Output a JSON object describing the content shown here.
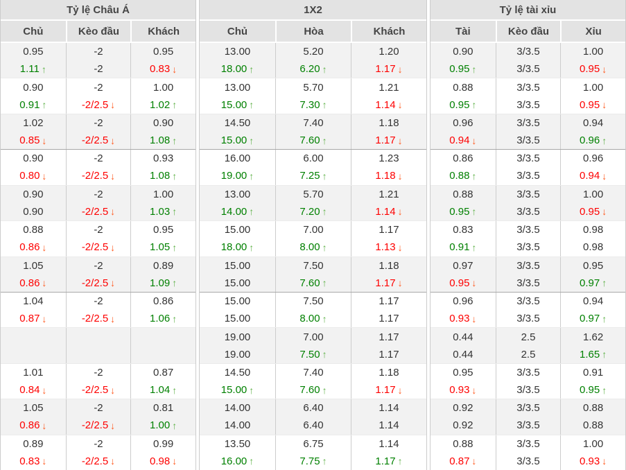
{
  "icons": {
    "up_arrow": "↑",
    "down_arrow": "↓"
  },
  "colors": {
    "header_bg": "#e3e3e3",
    "row_shade_bg": "#f2f2f2",
    "text": "#333333",
    "green_text": "#008000",
    "red_text": "#fe0000",
    "up_arrow": "#61b24b",
    "down_arrow": "#ff5a1f"
  },
  "table": {
    "groups": [
      {
        "title": "Tỷ lệ Châu Á",
        "columns": [
          "Chủ",
          "Kèo đầu",
          "Khách"
        ]
      },
      {
        "title": "1X2",
        "columns": [
          "Chủ",
          "Hòa",
          "Khách"
        ]
      },
      {
        "title": "Tỷ lệ tài xỉu",
        "columns": [
          "Tài",
          "Kèo đầu",
          "Xỉu"
        ]
      }
    ],
    "separator_after_rows": [
      3,
      7
    ],
    "rows": [
      {
        "cells": [
          {
            "v1": "0.95",
            "v2": "1.11",
            "trend": "up"
          },
          {
            "v1": "-2",
            "v2": "-2",
            "trend": ""
          },
          {
            "v1": "0.95",
            "v2": "0.83",
            "trend": "down"
          },
          {
            "v1": "13.00",
            "v2": "18.00",
            "trend": "up"
          },
          {
            "v1": "5.20",
            "v2": "6.20",
            "trend": "up"
          },
          {
            "v1": "1.20",
            "v2": "1.17",
            "trend": "down"
          },
          {
            "v1": "0.90",
            "v2": "0.95",
            "trend": "up"
          },
          {
            "v1": "3/3.5",
            "v2": "3/3.5",
            "trend": ""
          },
          {
            "v1": "1.00",
            "v2": "0.95",
            "trend": "down"
          }
        ]
      },
      {
        "cells": [
          {
            "v1": "0.90",
            "v2": "0.91",
            "trend": "up"
          },
          {
            "v1": "-2",
            "v2": "-2/2.5",
            "trend": "down"
          },
          {
            "v1": "1.00",
            "v2": "1.02",
            "trend": "up"
          },
          {
            "v1": "13.00",
            "v2": "15.00",
            "trend": "up"
          },
          {
            "v1": "5.70",
            "v2": "7.30",
            "trend": "up"
          },
          {
            "v1": "1.21",
            "v2": "1.14",
            "trend": "down"
          },
          {
            "v1": "0.88",
            "v2": "0.95",
            "trend": "up"
          },
          {
            "v1": "3/3.5",
            "v2": "3/3.5",
            "trend": ""
          },
          {
            "v1": "1.00",
            "v2": "0.95",
            "trend": "down"
          }
        ]
      },
      {
        "cells": [
          {
            "v1": "1.02",
            "v2": "0.85",
            "trend": "down"
          },
          {
            "v1": "-2",
            "v2": "-2/2.5",
            "trend": "down"
          },
          {
            "v1": "0.90",
            "v2": "1.08",
            "trend": "up"
          },
          {
            "v1": "14.50",
            "v2": "15.00",
            "trend": "up"
          },
          {
            "v1": "7.40",
            "v2": "7.60",
            "trend": "up"
          },
          {
            "v1": "1.18",
            "v2": "1.17",
            "trend": "down"
          },
          {
            "v1": "0.96",
            "v2": "0.94",
            "trend": "down"
          },
          {
            "v1": "3/3.5",
            "v2": "3/3.5",
            "trend": ""
          },
          {
            "v1": "0.94",
            "v2": "0.96",
            "trend": "up"
          }
        ]
      },
      {
        "cells": [
          {
            "v1": "0.90",
            "v2": "0.80",
            "trend": "down"
          },
          {
            "v1": "-2",
            "v2": "-2/2.5",
            "trend": "down"
          },
          {
            "v1": "0.93",
            "v2": "1.08",
            "trend": "up"
          },
          {
            "v1": "16.00",
            "v2": "19.00",
            "trend": "up"
          },
          {
            "v1": "6.00",
            "v2": "7.25",
            "trend": "up"
          },
          {
            "v1": "1.23",
            "v2": "1.18",
            "trend": "down"
          },
          {
            "v1": "0.86",
            "v2": "0.88",
            "trend": "up"
          },
          {
            "v1": "3/3.5",
            "v2": "3/3.5",
            "trend": ""
          },
          {
            "v1": "0.96",
            "v2": "0.94",
            "trend": "down"
          }
        ]
      },
      {
        "cells": [
          {
            "v1": "0.90",
            "v2": "0.90",
            "trend": ""
          },
          {
            "v1": "-2",
            "v2": "-2/2.5",
            "trend": "down"
          },
          {
            "v1": "1.00",
            "v2": "1.03",
            "trend": "up"
          },
          {
            "v1": "13.00",
            "v2": "14.00",
            "trend": "up"
          },
          {
            "v1": "5.70",
            "v2": "7.20",
            "trend": "up"
          },
          {
            "v1": "1.21",
            "v2": "1.14",
            "trend": "down"
          },
          {
            "v1": "0.88",
            "v2": "0.95",
            "trend": "up"
          },
          {
            "v1": "3/3.5",
            "v2": "3/3.5",
            "trend": ""
          },
          {
            "v1": "1.00",
            "v2": "0.95",
            "trend": "down"
          }
        ]
      },
      {
        "cells": [
          {
            "v1": "0.88",
            "v2": "0.86",
            "trend": "down"
          },
          {
            "v1": "-2",
            "v2": "-2/2.5",
            "trend": "down"
          },
          {
            "v1": "0.95",
            "v2": "1.05",
            "trend": "up"
          },
          {
            "v1": "15.00",
            "v2": "18.00",
            "trend": "up"
          },
          {
            "v1": "7.00",
            "v2": "8.00",
            "trend": "up"
          },
          {
            "v1": "1.17",
            "v2": "1.13",
            "trend": "down"
          },
          {
            "v1": "0.83",
            "v2": "0.91",
            "trend": "up"
          },
          {
            "v1": "3/3.5",
            "v2": "3/3.5",
            "trend": ""
          },
          {
            "v1": "0.98",
            "v2": "0.98",
            "trend": ""
          }
        ]
      },
      {
        "cells": [
          {
            "v1": "1.05",
            "v2": "0.86",
            "trend": "down"
          },
          {
            "v1": "-2",
            "v2": "-2/2.5",
            "trend": "down"
          },
          {
            "v1": "0.89",
            "v2": "1.09",
            "trend": "up"
          },
          {
            "v1": "15.00",
            "v2": "15.00",
            "trend": ""
          },
          {
            "v1": "7.50",
            "v2": "7.60",
            "trend": "up"
          },
          {
            "v1": "1.18",
            "v2": "1.17",
            "trend": "down"
          },
          {
            "v1": "0.97",
            "v2": "0.95",
            "trend": "down"
          },
          {
            "v1": "3/3.5",
            "v2": "3/3.5",
            "trend": ""
          },
          {
            "v1": "0.95",
            "v2": "0.97",
            "trend": "up"
          }
        ]
      },
      {
        "cells": [
          {
            "v1": "1.04",
            "v2": "0.87",
            "trend": "down"
          },
          {
            "v1": "-2",
            "v2": "-2/2.5",
            "trend": "down"
          },
          {
            "v1": "0.86",
            "v2": "1.06",
            "trend": "up"
          },
          {
            "v1": "15.00",
            "v2": "15.00",
            "trend": ""
          },
          {
            "v1": "7.50",
            "v2": "8.00",
            "trend": "up"
          },
          {
            "v1": "1.17",
            "v2": "1.17",
            "trend": ""
          },
          {
            "v1": "0.96",
            "v2": "0.93",
            "trend": "down"
          },
          {
            "v1": "3/3.5",
            "v2": "3/3.5",
            "trend": ""
          },
          {
            "v1": "0.94",
            "v2": "0.97",
            "trend": "up"
          }
        ]
      },
      {
        "cells": [
          {
            "v1": "",
            "v2": "",
            "trend": ""
          },
          {
            "v1": "",
            "v2": "",
            "trend": ""
          },
          {
            "v1": "",
            "v2": "",
            "trend": ""
          },
          {
            "v1": "19.00",
            "v2": "19.00",
            "trend": ""
          },
          {
            "v1": "7.00",
            "v2": "7.50",
            "trend": "up"
          },
          {
            "v1": "1.17",
            "v2": "1.17",
            "trend": ""
          },
          {
            "v1": "0.44",
            "v2": "0.44",
            "trend": ""
          },
          {
            "v1": "2.5",
            "v2": "2.5",
            "trend": ""
          },
          {
            "v1": "1.62",
            "v2": "1.65",
            "trend": "up"
          }
        ]
      },
      {
        "cells": [
          {
            "v1": "1.01",
            "v2": "0.84",
            "trend": "down"
          },
          {
            "v1": "-2",
            "v2": "-2/2.5",
            "trend": "down"
          },
          {
            "v1": "0.87",
            "v2": "1.04",
            "trend": "up"
          },
          {
            "v1": "14.50",
            "v2": "15.00",
            "trend": "up"
          },
          {
            "v1": "7.40",
            "v2": "7.60",
            "trend": "up"
          },
          {
            "v1": "1.18",
            "v2": "1.17",
            "trend": "down"
          },
          {
            "v1": "0.95",
            "v2": "0.93",
            "trend": "down"
          },
          {
            "v1": "3/3.5",
            "v2": "3/3.5",
            "trend": ""
          },
          {
            "v1": "0.91",
            "v2": "0.95",
            "trend": "up"
          }
        ]
      },
      {
        "cells": [
          {
            "v1": "1.05",
            "v2": "0.86",
            "trend": "down"
          },
          {
            "v1": "-2",
            "v2": "-2/2.5",
            "trend": "down"
          },
          {
            "v1": "0.81",
            "v2": "1.00",
            "trend": "up"
          },
          {
            "v1": "14.00",
            "v2": "14.00",
            "trend": ""
          },
          {
            "v1": "6.40",
            "v2": "6.40",
            "trend": ""
          },
          {
            "v1": "1.14",
            "v2": "1.14",
            "trend": ""
          },
          {
            "v1": "0.92",
            "v2": "0.92",
            "trend": ""
          },
          {
            "v1": "3/3.5",
            "v2": "3/3.5",
            "trend": ""
          },
          {
            "v1": "0.88",
            "v2": "0.88",
            "trend": ""
          }
        ]
      },
      {
        "cells": [
          {
            "v1": "0.89",
            "v2": "0.83",
            "trend": "down"
          },
          {
            "v1": "-2",
            "v2": "-2/2.5",
            "trend": "down"
          },
          {
            "v1": "0.99",
            "v2": "0.98",
            "trend": "down"
          },
          {
            "v1": "13.50",
            "v2": "16.00",
            "trend": "up"
          },
          {
            "v1": "6.75",
            "v2": "7.75",
            "trend": "up"
          },
          {
            "v1": "1.14",
            "v2": "1.17",
            "trend": "up"
          },
          {
            "v1": "0.88",
            "v2": "0.87",
            "trend": "down"
          },
          {
            "v1": "3/3.5",
            "v2": "3/3.5",
            "trend": ""
          },
          {
            "v1": "1.00",
            "v2": "0.93",
            "trend": "down"
          }
        ]
      }
    ]
  }
}
